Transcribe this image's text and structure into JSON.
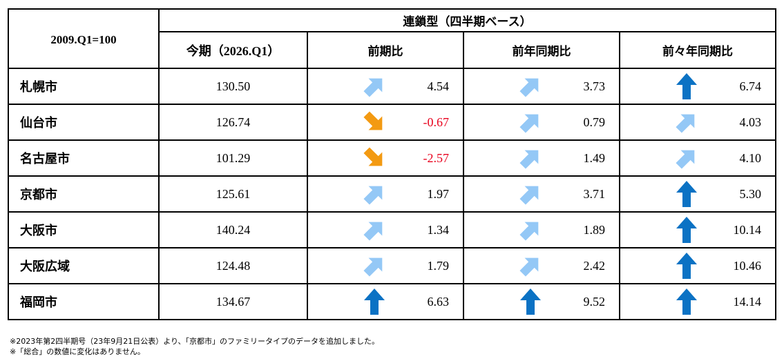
{
  "table": {
    "corner_label": "2009.Q1=100",
    "group_header": "連鎖型（四半期ベース）",
    "columns": [
      "今期（2026.Q1）",
      "前期比",
      "前年同期比",
      "前々年同期比"
    ],
    "rows": [
      {
        "city": "札幌市",
        "current": "130.50",
        "changes": [
          {
            "value": "4.54",
            "arrow": "up-right-light",
            "negative": false
          },
          {
            "value": "3.73",
            "arrow": "up-right-light",
            "negative": false
          },
          {
            "value": "6.74",
            "arrow": "up-strong",
            "negative": false
          }
        ]
      },
      {
        "city": "仙台市",
        "current": "126.74",
        "changes": [
          {
            "value": "-0.67",
            "arrow": "down-right-orange",
            "negative": true
          },
          {
            "value": "0.79",
            "arrow": "up-right-light",
            "negative": false
          },
          {
            "value": "4.03",
            "arrow": "up-right-light",
            "negative": false
          }
        ]
      },
      {
        "city": "名古屋市",
        "current": "101.29",
        "changes": [
          {
            "value": "-2.57",
            "arrow": "down-right-orange",
            "negative": true
          },
          {
            "value": "1.49",
            "arrow": "up-right-light",
            "negative": false
          },
          {
            "value": "4.10",
            "arrow": "up-right-light",
            "negative": false
          }
        ]
      },
      {
        "city": "京都市",
        "current": "125.61",
        "changes": [
          {
            "value": "1.97",
            "arrow": "up-right-light",
            "negative": false
          },
          {
            "value": "3.71",
            "arrow": "up-right-light",
            "negative": false
          },
          {
            "value": "5.30",
            "arrow": "up-strong",
            "negative": false
          }
        ]
      },
      {
        "city": "大阪市",
        "current": "140.24",
        "changes": [
          {
            "value": "1.34",
            "arrow": "up-right-light",
            "negative": false
          },
          {
            "value": "1.89",
            "arrow": "up-right-light",
            "negative": false
          },
          {
            "value": "10.14",
            "arrow": "up-strong",
            "negative": false
          }
        ]
      },
      {
        "city": "大阪広域",
        "current": "124.48",
        "changes": [
          {
            "value": "1.79",
            "arrow": "up-right-light",
            "negative": false
          },
          {
            "value": "2.42",
            "arrow": "up-right-light",
            "negative": false
          },
          {
            "value": "10.46",
            "arrow": "up-strong",
            "negative": false
          }
        ]
      },
      {
        "city": "福岡市",
        "current": "134.67",
        "changes": [
          {
            "value": "6.63",
            "arrow": "up-strong",
            "negative": false
          },
          {
            "value": "9.52",
            "arrow": "up-strong",
            "negative": false
          },
          {
            "value": "14.14",
            "arrow": "up-strong",
            "negative": false
          }
        ]
      }
    ]
  },
  "notes": [
    "※2023年第2四半期号（23年9月21日公表）より、「京都市」のファミリータイプのデータを追加しました。",
    "※「総合」の数値に変化はありません。"
  ],
  "colors": {
    "up_strong": "#0b72c4",
    "up_light": "#94c8f6",
    "down_orange": "#f39a12",
    "negative_text": "#e8001c"
  }
}
